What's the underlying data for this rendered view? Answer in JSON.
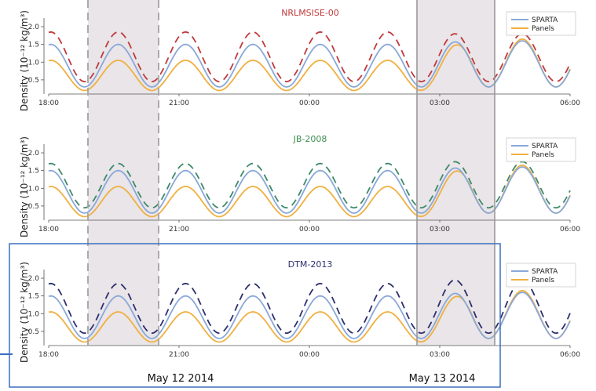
{
  "chart_data": [
    {
      "type": "line",
      "title": "NRLMSISE-00",
      "title_color": "#c0393b",
      "ylabel": "Density (10⁻¹² kg/m³)",
      "ylim": [
        0.1,
        2.2
      ],
      "yticks": [
        "0.5",
        "1.0",
        "1.5",
        "2.0"
      ],
      "xtick_labels": [
        "18:00",
        "21:00",
        "00:00",
        "03:00",
        "06:00"
      ],
      "legend": "top-right",
      "series": [
        {
          "name": "SPARTA",
          "color": "#8aa8d8"
        },
        {
          "name": "Panels",
          "color": "#f0b041"
        },
        {
          "name": "",
          "color": "#c0393b"
        }
      ]
    },
    {
      "type": "line",
      "title": "JB-2008",
      "title_color": "#3f8f52",
      "ylabel": "Density (10⁻¹² kg/m³)",
      "ylim": [
        0.1,
        2.2
      ],
      "yticks": [
        "0.5",
        "1.0",
        "1.5",
        "2.0"
      ],
      "xtick_labels": [
        "18:00",
        "21:00",
        "00:00",
        "03:00",
        "06:00"
      ],
      "legend": "top-right",
      "series": [
        {
          "name": "SPARTA",
          "color": "#8aa8d8"
        },
        {
          "name": "Panels",
          "color": "#f0b041"
        },
        {
          "name": "",
          "color": "#3d8a68"
        }
      ]
    },
    {
      "type": "line",
      "title": "DTM-2013",
      "title_color": "#2c2f6e",
      "ylabel": "Density (10⁻¹² kg/m³)",
      "ylim": [
        0.1,
        2.2
      ],
      "yticks": [
        "0.5",
        "1.0",
        "1.5",
        "2.0"
      ],
      "xtick_labels": [
        "18:00",
        "21:00",
        "00:00",
        "03:00",
        "06:00"
      ],
      "legend": "top-right",
      "series": [
        {
          "name": "SPARTA",
          "color": "#8aa8d8"
        },
        {
          "name": "Panels",
          "color": "#f0b041"
        },
        {
          "name": "",
          "color": "#2c2f6e"
        }
      ]
    }
  ],
  "dates": [
    "May 12 2014",
    "May 13 2014"
  ],
  "colors": {
    "sparta": "#8aa8d8",
    "panels": "#f0b041",
    "shade": "#e9e5e8",
    "highlight_box": "#3b6fc0",
    "dashed_region": "#aaaaaa"
  }
}
